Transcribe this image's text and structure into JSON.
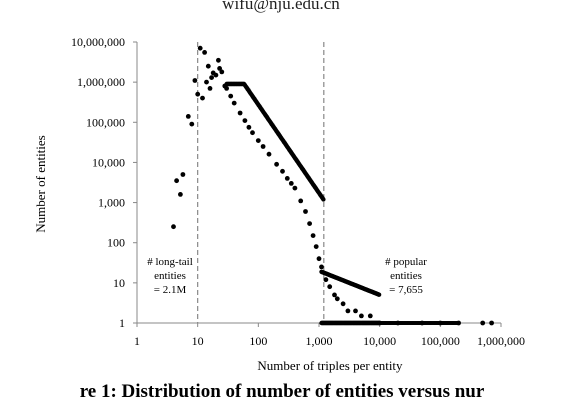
{
  "header_text": "wifu@nju.edu.cn",
  "caption": "re 1: Distribution of number of entities versus nur",
  "chart_data": {
    "type": "scatter",
    "title": "",
    "xlabel": "Number of triples per entity",
    "ylabel": "Number of entities",
    "x_scale": "log",
    "y_scale": "log",
    "xlim": [
      1,
      1000000
    ],
    "ylim": [
      1,
      10000000
    ],
    "x_ticks": [
      "1",
      "10",
      "100",
      "1,000",
      "10,000",
      "100,000",
      "1,000,000"
    ],
    "y_ticks": [
      "10,000,000",
      "1,000,000",
      "100,000",
      "10,000",
      "1,000",
      "100",
      "10",
      "1"
    ],
    "reference_lines_x": [
      10,
      1200
    ],
    "annotations": [
      {
        "lines": [
          "# long-tail",
          "entities",
          "= 2.1M"
        ]
      },
      {
        "lines": [
          "# popular",
          "entities",
          "= 7,655"
        ]
      }
    ],
    "series": [
      {
        "points": [
          [
            4,
            250
          ],
          [
            4.5,
            3500
          ],
          [
            5.2,
            1600
          ],
          [
            5.7,
            5000
          ],
          [
            7,
            140000
          ],
          [
            8,
            90000
          ],
          [
            9,
            1100000
          ],
          [
            10,
            500000
          ],
          [
            11,
            7000000
          ],
          [
            12,
            400000
          ],
          [
            13,
            5500000
          ],
          [
            14,
            1000000
          ],
          [
            15,
            2500000
          ],
          [
            16,
            700000
          ],
          [
            17,
            1300000
          ],
          [
            18,
            1700000
          ],
          [
            20,
            1500000
          ],
          [
            22,
            3500000
          ],
          [
            23,
            2200000
          ],
          [
            25,
            1800000
          ],
          [
            28,
            800000
          ],
          [
            30,
            700000
          ],
          [
            35,
            450000
          ],
          [
            40,
            300000
          ],
          [
            50,
            170000
          ],
          [
            60,
            110000
          ],
          [
            70,
            75000
          ],
          [
            80,
            55000
          ],
          [
            100,
            35000
          ],
          [
            120,
            25000
          ],
          [
            150,
            16000
          ],
          [
            200,
            9000
          ],
          [
            250,
            6000
          ],
          [
            300,
            4000
          ],
          [
            350,
            3000
          ],
          [
            400,
            2300
          ],
          [
            500,
            1100
          ],
          [
            600,
            600
          ],
          [
            700,
            300
          ],
          [
            800,
            150
          ],
          [
            900,
            80
          ],
          [
            1000,
            40
          ],
          [
            1100,
            25
          ],
          [
            1300,
            12
          ],
          [
            1500,
            8
          ],
          [
            1800,
            5
          ],
          [
            2000,
            4
          ],
          [
            2500,
            3
          ],
          [
            3000,
            2
          ],
          [
            4000,
            2
          ],
          [
            5000,
            1.5
          ],
          [
            7000,
            1.5
          ],
          [
            10000,
            1
          ],
          [
            20000,
            1
          ],
          [
            50000,
            1
          ],
          [
            100000,
            1
          ],
          [
            200000,
            1
          ],
          [
            500000,
            1
          ],
          [
            700000,
            1
          ]
        ]
      }
    ]
  }
}
